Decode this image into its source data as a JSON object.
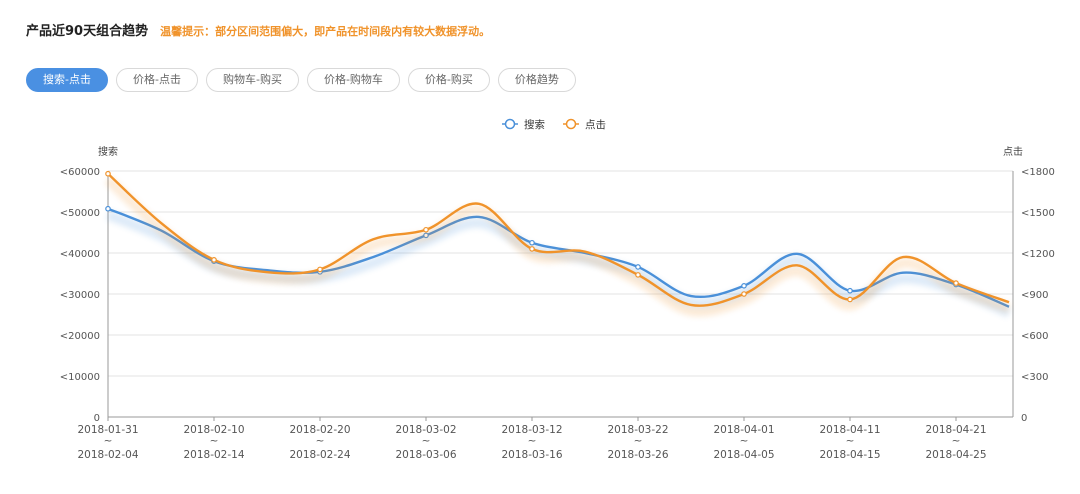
{
  "header": {
    "title": "产品近90天组合趋势",
    "tip": "温馨提示：部分区间范围偏大，即产品在时间段内有较大数据浮动。"
  },
  "tabs": [
    {
      "label": "搜索-点击",
      "active": true
    },
    {
      "label": "价格-点击",
      "active": false
    },
    {
      "label": "购物车-购买",
      "active": false
    },
    {
      "label": "价格-购物车",
      "active": false
    },
    {
      "label": "价格-购买",
      "active": false
    },
    {
      "label": "价格趋势",
      "active": false
    }
  ],
  "chart_data": {
    "type": "line",
    "legend_position": "top-center",
    "grid": true,
    "categories": [
      [
        "2018-01-31",
        "~",
        "2018-02-04"
      ],
      [
        "2018-02-10",
        "~",
        "2018-02-14"
      ],
      [
        "2018-02-20",
        "~",
        "2018-02-24"
      ],
      [
        "2018-03-02",
        "~",
        "2018-03-06"
      ],
      [
        "2018-03-12",
        "~",
        "2018-03-16"
      ],
      [
        "2018-03-22",
        "~",
        "2018-03-26"
      ],
      [
        "2018-04-01",
        "~",
        "2018-04-05"
      ],
      [
        "2018-04-11",
        "~",
        "2018-04-15"
      ],
      [
        "2018-04-21",
        "~",
        "2018-04-25"
      ]
    ],
    "y_left": {
      "label": "搜索",
      "min": 0,
      "max": 60000,
      "ticks": [
        0,
        10000,
        20000,
        30000,
        40000,
        50000,
        60000
      ],
      "tick_labels": [
        "0",
        "<10000",
        "<20000",
        "<30000",
        "<40000",
        "<50000",
        "<60000"
      ]
    },
    "y_right": {
      "label": "点击",
      "min": 0,
      "max": 1800,
      "ticks": [
        0,
        300,
        600,
        900,
        1200,
        1500,
        1800
      ],
      "tick_labels": [
        "0",
        "<300",
        "<600",
        "<900",
        "<1200",
        "<1500",
        "<1800"
      ]
    },
    "series": [
      {
        "name": "搜索",
        "axis": "left",
        "color": "#4a90d9",
        "x": [
          0,
          0.5,
          1,
          1.5,
          2,
          2.5,
          3,
          3.5,
          4,
          4.5,
          5,
          5.5,
          6,
          6.5,
          7,
          7.5,
          8,
          8.5
        ],
        "values": [
          50800,
          45500,
          38000,
          35800,
          35400,
          39000,
          44300,
          48800,
          42500,
          40000,
          36600,
          29500,
          32000,
          39800,
          30800,
          35200,
          32300,
          26900
        ]
      },
      {
        "name": "点击",
        "axis": "right",
        "color": "#f0932b",
        "x": [
          0,
          0.5,
          1,
          1.5,
          2,
          2.5,
          3,
          3.5,
          4,
          4.5,
          5,
          5.5,
          6,
          6.5,
          7,
          7.5,
          8,
          8.5
        ],
        "values": [
          1780,
          1420,
          1150,
          1060,
          1080,
          1300,
          1370,
          1560,
          1230,
          1210,
          1040,
          820,
          900,
          1110,
          860,
          1170,
          980,
          840
        ]
      }
    ]
  }
}
